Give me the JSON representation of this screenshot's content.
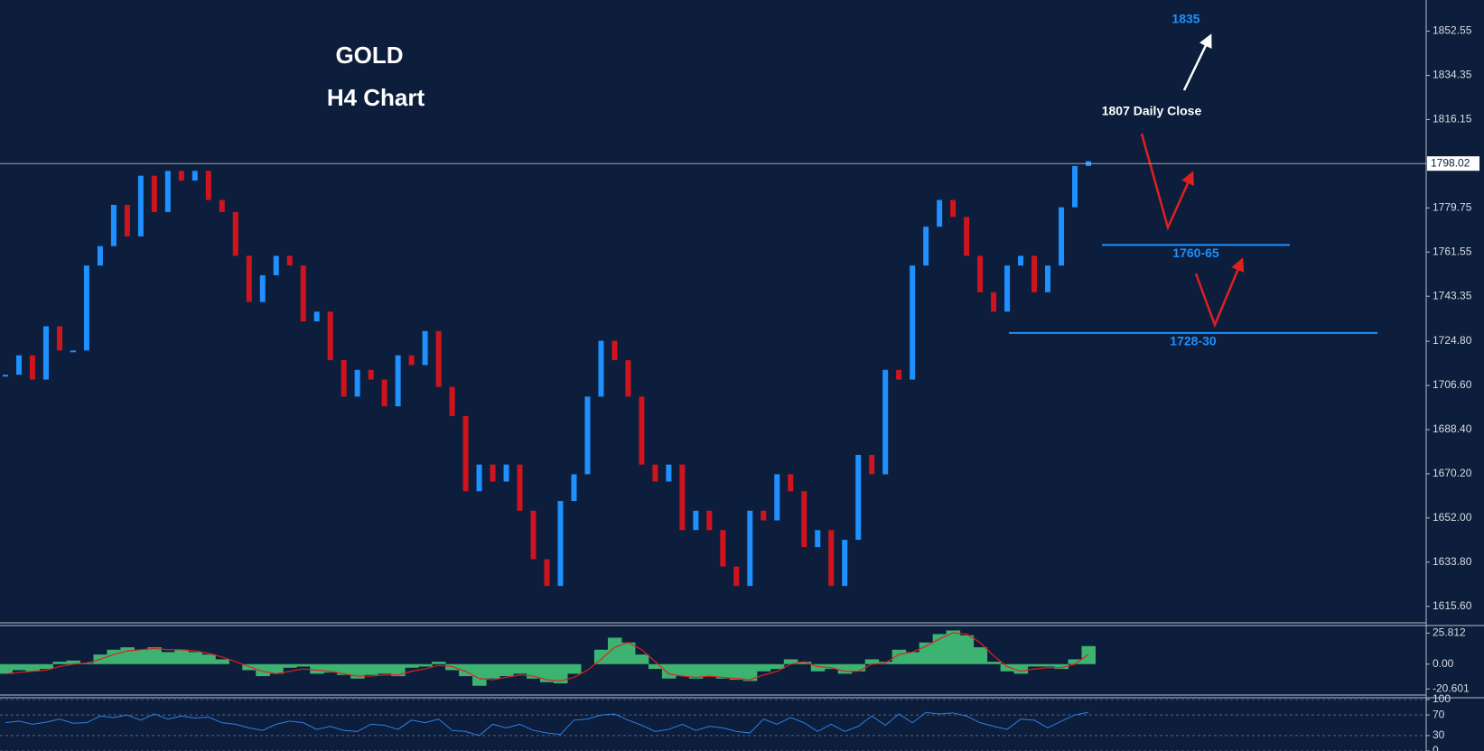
{
  "chart_data": [
    {
      "type": "candlestick",
      "title": "GOLD",
      "subtitle": "H4 Chart",
      "up_color": "#1e90ff",
      "down_color": "#d0141e",
      "values": [
        1711,
        1719,
        1709,
        1731,
        1721,
        1721,
        1756,
        1764,
        1781,
        1768,
        1793,
        1778,
        1795,
        1791,
        1795,
        1783,
        1778,
        1760,
        1741,
        1752,
        1760,
        1756,
        1733,
        1737,
        1717,
        1702,
        1713,
        1709,
        1698,
        1719,
        1715,
        1729,
        1706,
        1694,
        1663,
        1674,
        1667,
        1674,
        1655,
        1635,
        1624,
        1659,
        1670,
        1702,
        1725,
        1717,
        1702,
        1674,
        1667,
        1674,
        1647,
        1655,
        1647,
        1632,
        1624,
        1655,
        1651,
        1670,
        1663,
        1640,
        1647,
        1624,
        1643,
        1678,
        1670,
        1713,
        1709,
        1756,
        1772,
        1783,
        1776,
        1760,
        1745,
        1737,
        1756,
        1760,
        1745,
        1756,
        1780,
        1797,
        1799
      ],
      "ylim": [
        1608.8,
        1865.4
      ],
      "yticks": [
        1852.55,
        1834.35,
        1816.15,
        1779.75,
        1761.55,
        1743.35,
        {
          "value": 1724.8,
          "label": "1724.80"
        },
        {
          "value": 1706.6,
          "label": "1706.60"
        },
        {
          "value": 1688.4,
          "label": "1688.40"
        },
        {
          "value": 1670.2,
          "label": "1670.20"
        },
        {
          "value": 1652,
          "label": "1652.00"
        },
        {
          "value": 1633.8,
          "label": "1633.80"
        },
        {
          "value": 1615.6,
          "label": "1615.60"
        }
      ],
      "current_price": 1798.02,
      "annotations": [
        "1835",
        "1807 Daily Close"
      ],
      "levels": [
        {
          "label": "1760-65",
          "value": 1764.5,
          "color": "#1e90ff"
        },
        {
          "label": "1728-30",
          "value": 1728.2,
          "color": "#1e90ff"
        }
      ]
    },
    {
      "type": "macd",
      "series": [
        {
          "color": "#3cb371",
          "values": [
            -8,
            -5,
            -6,
            -4,
            2,
            3,
            1,
            8,
            12,
            14,
            12,
            14,
            10,
            12,
            10,
            8,
            4,
            0,
            -5,
            -10,
            -8,
            -3,
            -2,
            -8,
            -7,
            -9,
            -12,
            -9,
            -8,
            -10,
            -3,
            -2,
            2,
            -5,
            -10,
            -18,
            -12,
            -10,
            -8,
            -12,
            -15,
            -16,
            -8,
            0,
            12,
            22,
            18,
            8,
            -4,
            -12,
            -10,
            -12,
            -10,
            -12,
            -13,
            -14,
            -6,
            -4,
            4,
            2,
            -6,
            -4,
            -8,
            -6,
            4,
            2,
            12,
            10,
            18,
            25,
            28,
            24,
            14,
            2,
            -6,
            -8,
            -2,
            -2,
            -4,
            4,
            15
          ]
        },
        {
          "color": "#e0201e",
          "values": [
            -8,
            -7,
            -6,
            -5,
            -2,
            0,
            1,
            4,
            8,
            11,
            12,
            13,
            12,
            12,
            11,
            9,
            6,
            2,
            -2,
            -6,
            -8,
            -6,
            -4,
            -5,
            -6,
            -8,
            -10,
            -10,
            -9,
            -9,
            -6,
            -4,
            -1,
            -2,
            -6,
            -12,
            -13,
            -11,
            -9,
            -10,
            -13,
            -14,
            -11,
            -5,
            4,
            14,
            18,
            12,
            2,
            -8,
            -10,
            -11,
            -10,
            -11,
            -12,
            -13,
            -9,
            -6,
            0,
            2,
            -2,
            -3,
            -6,
            -6,
            0,
            1,
            8,
            10,
            15,
            21,
            26,
            25,
            18,
            7,
            -2,
            -6,
            -4,
            -3,
            -3,
            0,
            8
          ]
        }
      ],
      "ylim": [
        -25.7,
        32.1
      ],
      "yticks": [
        25.812,
        {
          "value": 0,
          "label": "0.00"
        },
        -20.601
      ]
    },
    {
      "type": "line",
      "color": "#2f7fe0",
      "values": [
        55,
        58,
        52,
        56,
        62,
        54,
        55,
        68,
        65,
        70,
        60,
        72,
        62,
        68,
        64,
        66,
        55,
        52,
        45,
        40,
        52,
        58,
        55,
        42,
        48,
        40,
        38,
        52,
        50,
        42,
        60,
        55,
        62,
        40,
        38,
        30,
        52,
        45,
        52,
        40,
        35,
        32,
        60,
        62,
        70,
        72,
        60,
        50,
        38,
        42,
        52,
        40,
        48,
        45,
        38,
        35,
        62,
        52,
        65,
        55,
        38,
        52,
        38,
        48,
        68,
        50,
        72,
        55,
        75,
        72,
        74,
        68,
        55,
        48,
        42,
        62,
        60,
        45,
        58,
        70,
        75
      ],
      "ylim": [
        0,
        100
      ],
      "yticks": [
        100,
        70,
        30,
        0
      ]
    }
  ]
}
